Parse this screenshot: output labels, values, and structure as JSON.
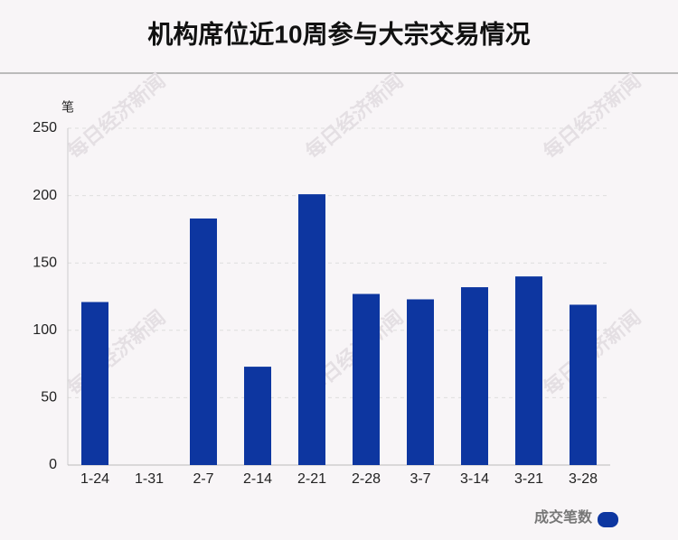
{
  "chart_data": {
    "type": "bar",
    "title": "机构席位近10周参与大宗交易情况",
    "y_unit": "笔",
    "watermark": "每日经济新闻",
    "categories": [
      "1-24",
      "1-31",
      "2-7",
      "2-14",
      "2-21",
      "2-28",
      "3-7",
      "3-14",
      "3-21",
      "3-28"
    ],
    "series": [
      {
        "name": "成交笔数",
        "color": "#0d36a0",
        "values": [
          121,
          0,
          183,
          73,
          201,
          127,
          123,
          132,
          140,
          119
        ]
      }
    ],
    "ylim": [
      0,
      250
    ],
    "yticks": [
      0,
      50,
      100,
      150,
      200,
      250
    ],
    "grid": true,
    "legend": "bottom-right"
  }
}
